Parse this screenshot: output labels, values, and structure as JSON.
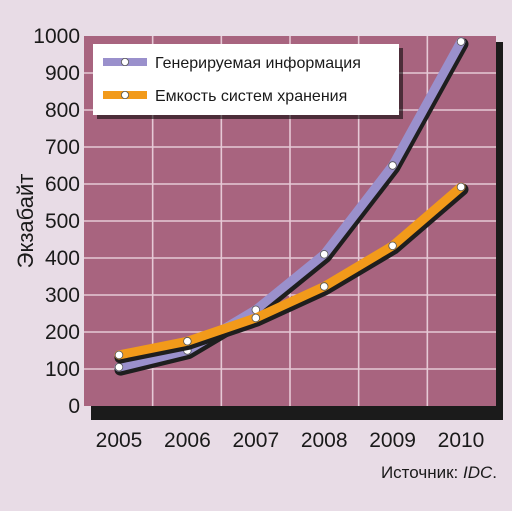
{
  "chart_data": {
    "type": "line",
    "title": "",
    "xlabel": "",
    "ylabel": "Экзабайт",
    "x": [
      "2005",
      "2006",
      "2007",
      "2008",
      "2009",
      "2010"
    ],
    "ylim": [
      0,
      1000
    ],
    "yticks": [
      0,
      100,
      200,
      300,
      400,
      500,
      600,
      700,
      800,
      900,
      1000
    ],
    "grid": true,
    "legend_position": "top-left",
    "series": [
      {
        "name": "Генерируемая информация",
        "values": [
          105,
          150,
          260,
          410,
          650,
          985
        ],
        "color": "#9a90cc"
      },
      {
        "name": "Емкость систем хранения",
        "values": [
          138,
          175,
          238,
          323,
          433,
          592
        ],
        "color": "#f29a1a"
      }
    ],
    "colors": {
      "plot_background": "#a8647f",
      "grid": "#e6c9d6",
      "page_background": "#e8dce6"
    }
  },
  "source": {
    "label": "Источник: ",
    "name": "IDC",
    "suffix": "."
  }
}
